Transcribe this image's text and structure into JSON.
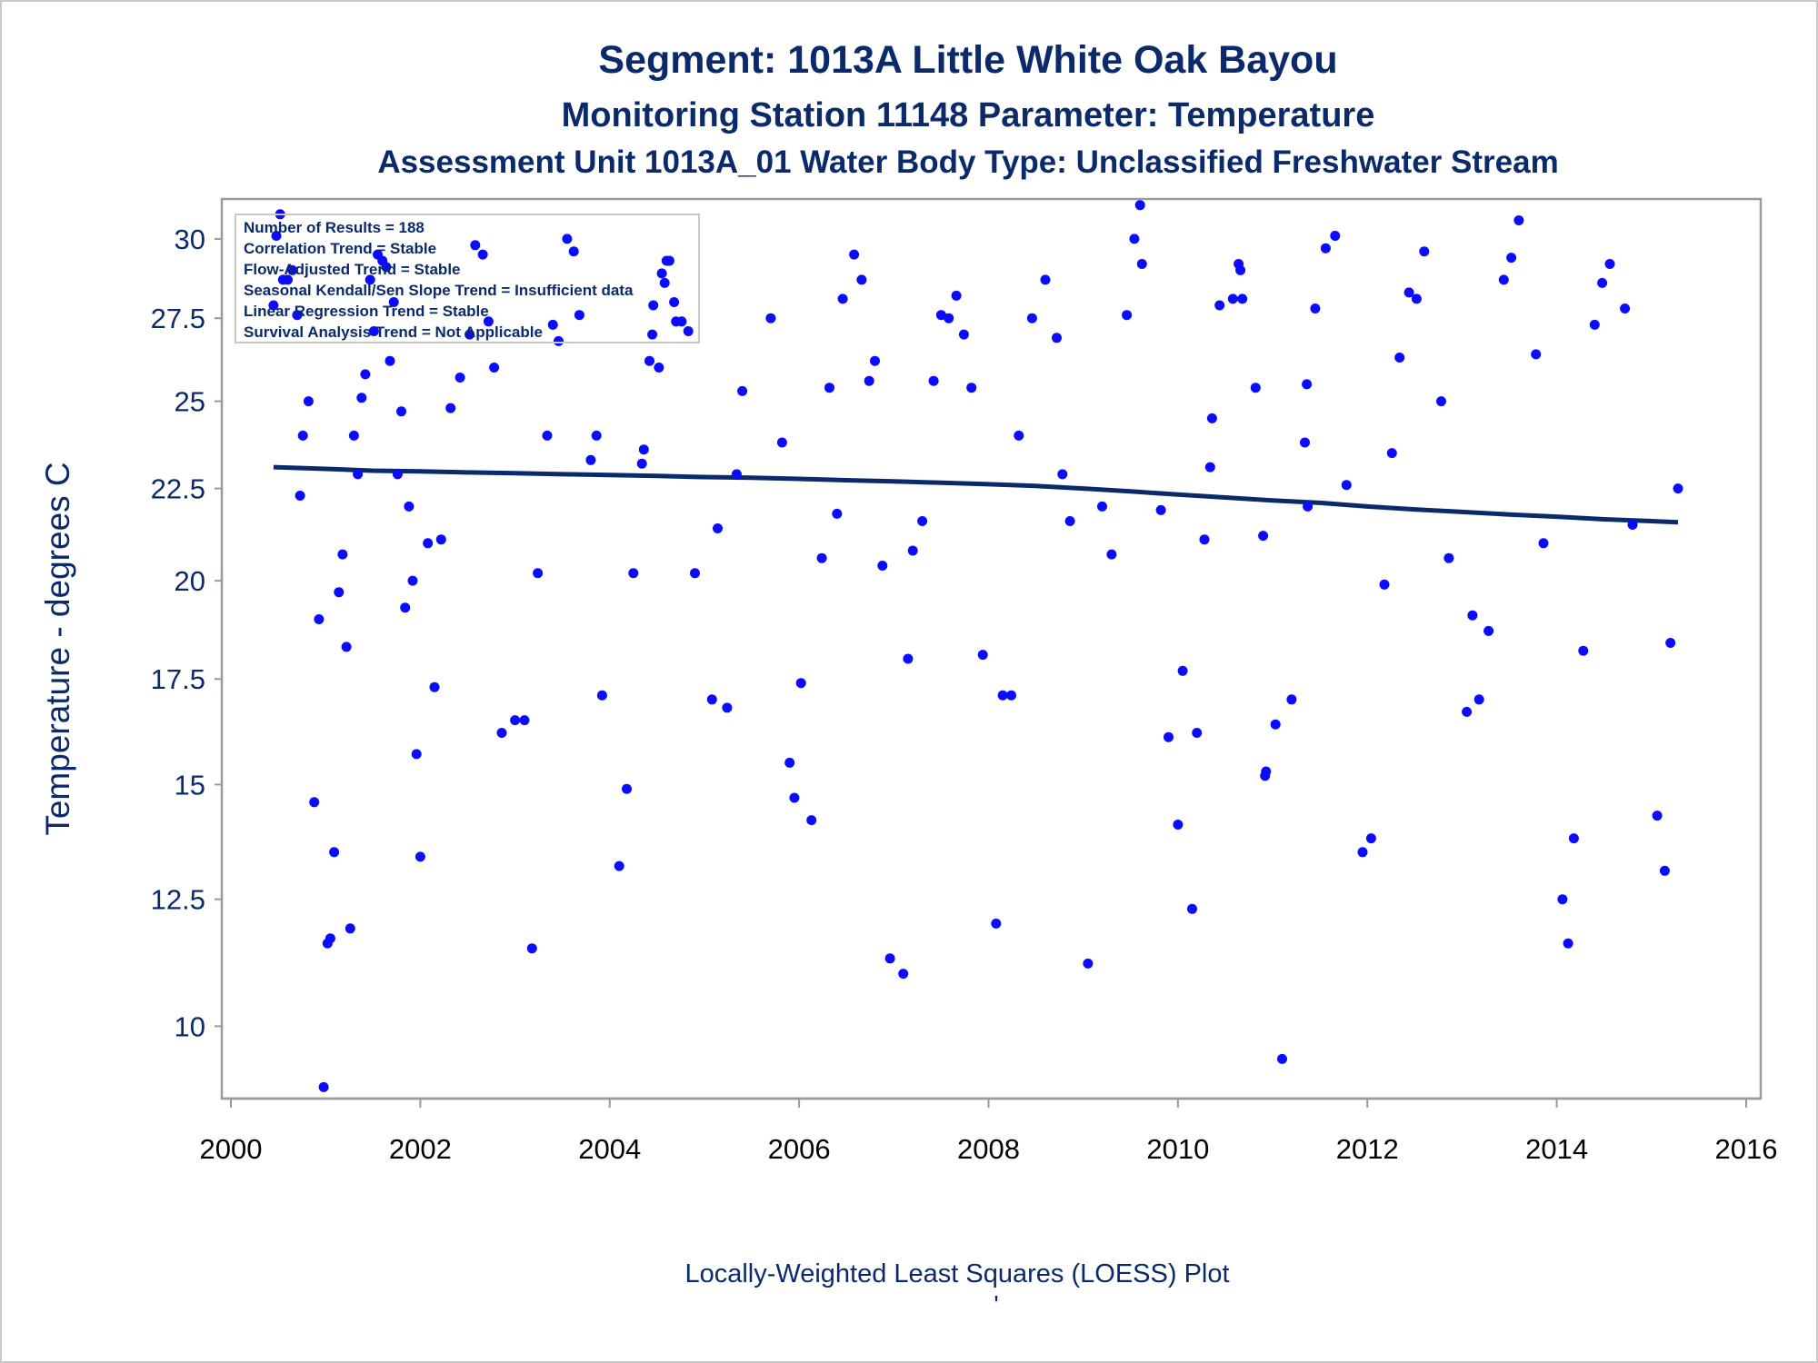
{
  "titles": {
    "line1": "Segment: 1013A  Little White Oak Bayou",
    "line2": "Monitoring Station 11148 Parameter: Temperature",
    "line3": "Assessment Unit 1013A_01   Water Body Type: Unclassified Freshwater Stream"
  },
  "legend": [
    "Number of Results = 188",
    "Correlation Trend = Stable",
    "Flow-Adjusted Trend = Stable",
    "Seasonal Kendall/Sen Slope Trend = Insufficient data",
    "Linear Regression Trend = Stable",
    "Survival Analysis Trend = Not Applicable"
  ],
  "footer": "Locally-Weighted Least Squares (LOESS) Plot",
  "footer_mark": "'",
  "colors": {
    "points": "#0b0bff",
    "trend": "#0b2a6b",
    "text": "#0b2a6b",
    "frame": "#9a9a9a"
  },
  "chart_data": {
    "type": "scatter",
    "title": "Segment: 1013A  Little White Oak Bayou",
    "xlabel": "",
    "ylabel": "Temperature - degrees C",
    "xlim": [
      2000,
      2016
    ],
    "ylim": [
      8.7,
      31.3
    ],
    "xticks": [
      2000,
      2002,
      2004,
      2006,
      2008,
      2010,
      2012,
      2014,
      2016
    ],
    "yticks": [
      10,
      12.5,
      15,
      17.5,
      20,
      22.5,
      25,
      27.5,
      30
    ],
    "ytick_labels": [
      "10",
      "12.5",
      "15",
      "17.5",
      "20",
      "22.5",
      "25",
      "27.5",
      "30"
    ],
    "points": [
      [
        2000.45,
        27.9
      ],
      [
        2000.48,
        30.1
      ],
      [
        2000.52,
        30.8
      ],
      [
        2000.55,
        28.7
      ],
      [
        2000.6,
        28.7
      ],
      [
        2000.65,
        29.0
      ],
      [
        2000.7,
        27.6
      ],
      [
        2000.73,
        22.3
      ],
      [
        2000.76,
        24.0
      ],
      [
        2000.82,
        25.0
      ],
      [
        2000.88,
        14.6
      ],
      [
        2000.93,
        19.0
      ],
      [
        2000.98,
        8.9
      ],
      [
        2001.02,
        11.6
      ],
      [
        2001.05,
        11.7
      ],
      [
        2001.09,
        13.5
      ],
      [
        2001.14,
        19.7
      ],
      [
        2001.18,
        20.7
      ],
      [
        2001.22,
        18.3
      ],
      [
        2001.26,
        11.9
      ],
      [
        2001.3,
        24.0
      ],
      [
        2001.34,
        22.9
      ],
      [
        2001.38,
        25.1
      ],
      [
        2001.42,
        25.8
      ],
      [
        2001.47,
        28.7
      ],
      [
        2001.51,
        27.1
      ],
      [
        2001.55,
        29.5
      ],
      [
        2001.6,
        29.3
      ],
      [
        2001.64,
        29.1
      ],
      [
        2001.68,
        26.2
      ],
      [
        2001.72,
        28.0
      ],
      [
        2001.76,
        22.9
      ],
      [
        2001.8,
        24.7
      ],
      [
        2001.84,
        19.3
      ],
      [
        2001.88,
        22.0
      ],
      [
        2001.92,
        20.0
      ],
      [
        2001.96,
        15.7
      ],
      [
        2002.0,
        13.4
      ],
      [
        2002.08,
        21.0
      ],
      [
        2002.15,
        17.3
      ],
      [
        2002.22,
        21.1
      ],
      [
        2002.32,
        24.8
      ],
      [
        2002.42,
        25.7
      ],
      [
        2002.52,
        27.0
      ],
      [
        2002.58,
        29.8
      ],
      [
        2002.66,
        29.5
      ],
      [
        2002.72,
        27.4
      ],
      [
        2002.78,
        26.0
      ],
      [
        2002.86,
        16.2
      ],
      [
        2003.0,
        16.5
      ],
      [
        2003.1,
        16.5
      ],
      [
        2003.18,
        11.5
      ],
      [
        2003.24,
        20.2
      ],
      [
        2003.34,
        24.0
      ],
      [
        2003.4,
        27.3
      ],
      [
        2003.46,
        26.8
      ],
      [
        2003.55,
        30.0
      ],
      [
        2003.62,
        29.6
      ],
      [
        2003.68,
        27.6
      ],
      [
        2003.8,
        23.3
      ],
      [
        2003.86,
        24.0
      ],
      [
        2003.92,
        17.1
      ],
      [
        2004.1,
        13.2
      ],
      [
        2004.18,
        14.9
      ],
      [
        2004.25,
        20.2
      ],
      [
        2004.34,
        23.2
      ],
      [
        2004.36,
        23.6
      ],
      [
        2004.42,
        26.2
      ],
      [
        2004.45,
        27.0
      ],
      [
        2004.46,
        27.9
      ],
      [
        2004.52,
        26.0
      ],
      [
        2004.55,
        28.9
      ],
      [
        2004.58,
        28.6
      ],
      [
        2004.6,
        29.3
      ],
      [
        2004.63,
        29.3
      ],
      [
        2004.68,
        28.0
      ],
      [
        2004.7,
        27.4
      ],
      [
        2004.76,
        27.4
      ],
      [
        2004.83,
        27.1
      ],
      [
        2004.9,
        20.2
      ],
      [
        2005.08,
        17.0
      ],
      [
        2005.14,
        21.4
      ],
      [
        2005.24,
        16.8
      ],
      [
        2005.34,
        22.9
      ],
      [
        2005.4,
        25.3
      ],
      [
        2005.7,
        27.5
      ],
      [
        2005.82,
        23.8
      ],
      [
        2005.9,
        15.5
      ],
      [
        2005.95,
        14.7
      ],
      [
        2006.02,
        17.4
      ],
      [
        2006.13,
        14.2
      ],
      [
        2006.24,
        20.6
      ],
      [
        2006.32,
        25.4
      ],
      [
        2006.4,
        21.8
      ],
      [
        2006.46,
        28.1
      ],
      [
        2006.58,
        29.5
      ],
      [
        2006.66,
        28.7
      ],
      [
        2006.74,
        25.6
      ],
      [
        2006.8,
        26.2
      ],
      [
        2006.88,
        20.4
      ],
      [
        2006.96,
        11.3
      ],
      [
        2007.1,
        11.0
      ],
      [
        2007.15,
        18.0
      ],
      [
        2007.2,
        20.8
      ],
      [
        2007.3,
        21.6
      ],
      [
        2007.42,
        25.6
      ],
      [
        2007.5,
        27.6
      ],
      [
        2007.58,
        27.5
      ],
      [
        2007.66,
        28.2
      ],
      [
        2007.74,
        27.0
      ],
      [
        2007.82,
        25.4
      ],
      [
        2007.94,
        18.1
      ],
      [
        2008.08,
        12.0
      ],
      [
        2008.15,
        17.1
      ],
      [
        2008.24,
        17.1
      ],
      [
        2008.32,
        24.0
      ],
      [
        2008.46,
        27.5
      ],
      [
        2008.6,
        28.7
      ],
      [
        2008.72,
        26.9
      ],
      [
        2008.78,
        22.9
      ],
      [
        2008.86,
        21.6
      ],
      [
        2009.05,
        11.2
      ],
      [
        2009.2,
        22.0
      ],
      [
        2009.3,
        20.7
      ],
      [
        2009.46,
        27.6
      ],
      [
        2009.54,
        30.0
      ],
      [
        2009.6,
        31.1
      ],
      [
        2009.62,
        29.2
      ],
      [
        2009.82,
        21.9
      ],
      [
        2009.9,
        16.1
      ],
      [
        2010.0,
        14.1
      ],
      [
        2010.05,
        17.7
      ],
      [
        2010.15,
        12.3
      ],
      [
        2010.2,
        16.2
      ],
      [
        2010.28,
        21.1
      ],
      [
        2010.34,
        23.1
      ],
      [
        2010.36,
        24.5
      ],
      [
        2010.44,
        27.9
      ],
      [
        2010.58,
        28.1
      ],
      [
        2010.64,
        29.2
      ],
      [
        2010.66,
        29.0
      ],
      [
        2010.68,
        28.1
      ],
      [
        2010.82,
        25.4
      ],
      [
        2010.9,
        21.2
      ],
      [
        2010.92,
        15.2
      ],
      [
        2010.93,
        15.3
      ],
      [
        2011.03,
        16.4
      ],
      [
        2011.1,
        9.4
      ],
      [
        2011.2,
        17.0
      ],
      [
        2011.34,
        23.8
      ],
      [
        2011.36,
        25.5
      ],
      [
        2011.37,
        22.0
      ],
      [
        2011.45,
        27.8
      ],
      [
        2011.56,
        29.7
      ],
      [
        2011.66,
        30.1
      ],
      [
        2011.78,
        22.6
      ],
      [
        2011.95,
        13.5
      ],
      [
        2012.04,
        13.8
      ],
      [
        2012.18,
        19.9
      ],
      [
        2012.26,
        23.5
      ],
      [
        2012.34,
        26.3
      ],
      [
        2012.44,
        28.3
      ],
      [
        2012.52,
        28.1
      ],
      [
        2012.6,
        29.6
      ],
      [
        2012.78,
        25.0
      ],
      [
        2012.86,
        20.6
      ],
      [
        2013.05,
        16.7
      ],
      [
        2013.11,
        19.1
      ],
      [
        2013.18,
        17.0
      ],
      [
        2013.28,
        18.7
      ],
      [
        2013.44,
        28.7
      ],
      [
        2013.52,
        29.4
      ],
      [
        2013.6,
        30.6
      ],
      [
        2013.78,
        26.4
      ],
      [
        2013.86,
        21.0
      ],
      [
        2014.06,
        12.5
      ],
      [
        2014.12,
        11.6
      ],
      [
        2014.18,
        13.8
      ],
      [
        2014.28,
        18.2
      ],
      [
        2014.4,
        27.3
      ],
      [
        2014.48,
        28.6
      ],
      [
        2014.56,
        29.2
      ],
      [
        2014.72,
        27.8
      ],
      [
        2014.8,
        21.5
      ],
      [
        2015.06,
        14.3
      ],
      [
        2015.14,
        13.1
      ],
      [
        2015.2,
        18.4
      ],
      [
        2015.28,
        22.5
      ]
    ],
    "trend_line": [
      [
        2000.45,
        23.1
      ],
      [
        2001.0,
        23.05
      ],
      [
        2001.5,
        23.0
      ],
      [
        2002.0,
        22.98
      ],
      [
        2002.5,
        22.95
      ],
      [
        2003.0,
        22.93
      ],
      [
        2003.5,
        22.9
      ],
      [
        2004.0,
        22.88
      ],
      [
        2004.5,
        22.85
      ],
      [
        2005.0,
        22.82
      ],
      [
        2005.5,
        22.8
      ],
      [
        2006.0,
        22.77
      ],
      [
        2006.5,
        22.73
      ],
      [
        2007.0,
        22.7
      ],
      [
        2007.5,
        22.66
      ],
      [
        2008.0,
        22.62
      ],
      [
        2008.5,
        22.57
      ],
      [
        2009.0,
        22.5
      ],
      [
        2009.5,
        22.42
      ],
      [
        2010.0,
        22.33
      ],
      [
        2010.5,
        22.25
      ],
      [
        2011.0,
        22.17
      ],
      [
        2011.5,
        22.1
      ],
      [
        2012.0,
        22.0
      ],
      [
        2012.5,
        21.92
      ],
      [
        2013.0,
        21.85
      ],
      [
        2013.5,
        21.78
      ],
      [
        2014.0,
        21.72
      ],
      [
        2014.5,
        21.65
      ],
      [
        2015.0,
        21.6
      ],
      [
        2015.28,
        21.57
      ]
    ]
  }
}
